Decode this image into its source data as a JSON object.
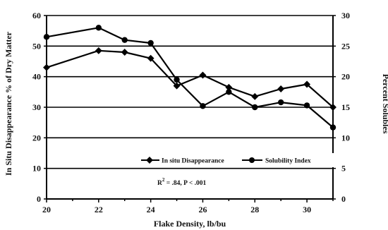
{
  "chart_data": {
    "type": "line",
    "title": "",
    "xlabel": "Flake Density, lb/bu",
    "ylabel": "In Situ Disappearance % of Dry Matter",
    "y2label": "Percent Solubles",
    "xlim": [
      20,
      31
    ],
    "ylim": [
      0,
      60
    ],
    "y2lim": [
      0,
      30
    ],
    "x_ticks": [
      20,
      22,
      24,
      26,
      28,
      30
    ],
    "y_ticks": [
      0,
      10,
      20,
      30,
      40,
      50,
      60
    ],
    "y2_ticks": [
      0,
      5,
      10,
      15,
      20,
      25,
      30
    ],
    "grid": "horizontal",
    "legend_position": "lower-center",
    "annotation_prefix": "R",
    "annotation_sup": "2",
    "annotation_rest": " = .84, P < .001",
    "series": [
      {
        "name": "In situ Disappearance",
        "axis": "left",
        "x": [
          20,
          22,
          23,
          24,
          25,
          26,
          27,
          28,
          29,
          30,
          31
        ],
        "values": [
          43,
          48.5,
          48,
          46,
          37,
          40.5,
          36.5,
          33.5,
          36,
          37.5,
          30
        ]
      },
      {
        "name": "Solubility Index",
        "axis": "right",
        "x": [
          20,
          22,
          23,
          24,
          25,
          26,
          27,
          28,
          29,
          30,
          31
        ],
        "values": [
          26.5,
          28,
          26,
          25.5,
          19.5,
          15.2,
          17.5,
          15,
          15.8,
          15.3,
          11.7
        ]
      }
    ]
  }
}
